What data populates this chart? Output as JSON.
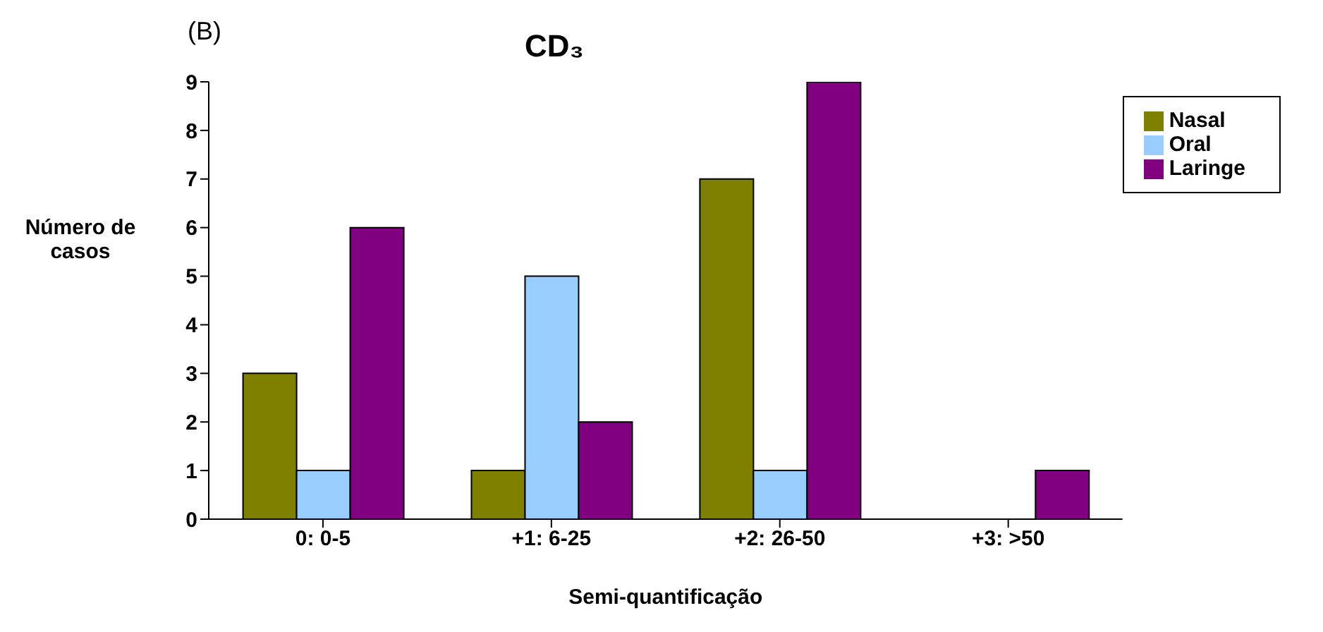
{
  "chart_data": {
    "type": "bar",
    "title": "CD₃",
    "annotations": [
      "(B)"
    ],
    "xlabel": "Semi-quantificação",
    "ylabel": "Número de casos",
    "categories": [
      "0: 0-5",
      "+1: 6-25",
      "+2: 26-50",
      "+3: >50"
    ],
    "series": [
      {
        "name": "Nasal",
        "color": "#808000",
        "values": [
          3,
          1,
          7,
          0
        ]
      },
      {
        "name": "Oral",
        "color": "#99ccff",
        "values": [
          1,
          5,
          1,
          0
        ]
      },
      {
        "name": "Laringe",
        "color": "#800080",
        "values": [
          6,
          2,
          9,
          1
        ]
      }
    ],
    "ylim": [
      0,
      9
    ],
    "yticks": [
      0,
      1,
      2,
      3,
      4,
      5,
      6,
      7,
      8,
      9
    ],
    "grid": false,
    "legend": "right"
  }
}
